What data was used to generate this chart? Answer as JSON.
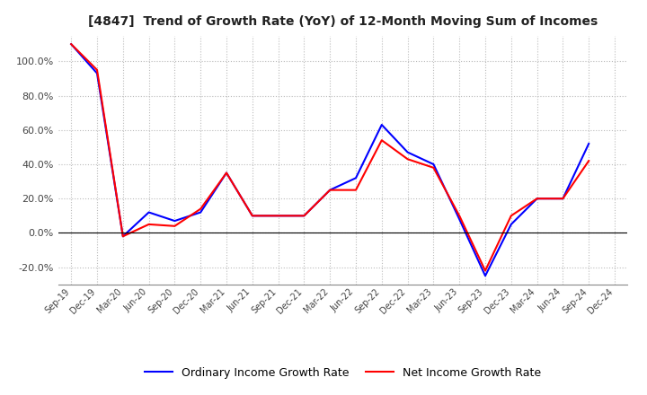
{
  "title": "[4847]  Trend of Growth Rate (YoY) of 12-Month Moving Sum of Incomes",
  "x_labels": [
    "Sep-19",
    "Dec-19",
    "Mar-20",
    "Jun-20",
    "Sep-20",
    "Dec-20",
    "Mar-21",
    "Jun-21",
    "Sep-21",
    "Dec-21",
    "Mar-22",
    "Jun-22",
    "Sep-22",
    "Dec-22",
    "Mar-23",
    "Jun-23",
    "Sep-23",
    "Dec-23",
    "Mar-24",
    "Jun-24",
    "Sep-24",
    "Dec-24"
  ],
  "ordinary_income": [
    110.0,
    93.0,
    -2.0,
    12.0,
    7.0,
    12.0,
    35.0,
    10.0,
    10.0,
    10.0,
    25.0,
    32.0,
    63.0,
    47.0,
    40.0,
    8.0,
    -25.0,
    5.0,
    20.0,
    20.0,
    52.0,
    null
  ],
  "net_income": [
    110.0,
    95.0,
    -2.0,
    5.0,
    4.0,
    14.0,
    35.0,
    10.0,
    10.0,
    10.0,
    25.0,
    25.0,
    54.0,
    43.0,
    38.0,
    10.0,
    -22.0,
    10.0,
    20.0,
    20.0,
    42.0,
    null
  ],
  "ordinary_color": "#0000ff",
  "net_color": "#ff0000",
  "ylim": [
    -30,
    115
  ],
  "yticks": [
    -20.0,
    0.0,
    20.0,
    40.0,
    60.0,
    80.0,
    100.0
  ],
  "legend_ordinary": "Ordinary Income Growth Rate",
  "legend_net": "Net Income Growth Rate",
  "background_color": "#ffffff",
  "grid_color": "#bbbbbb"
}
